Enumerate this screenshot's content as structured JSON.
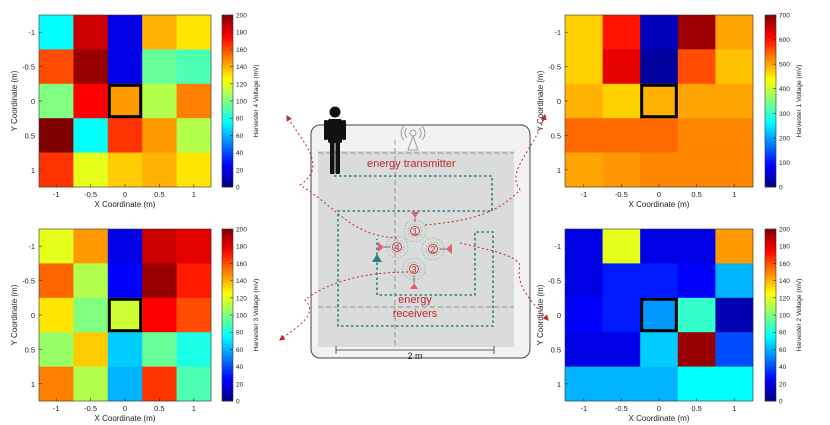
{
  "figure": {
    "center": {
      "energy_transmitter_label": "energy transmitter",
      "energy_receivers_label_line1": "energy",
      "energy_receivers_label_line2": "receivers",
      "scale_bar_label": "2 m",
      "receiver_numbers": [
        "1",
        "2",
        "3",
        "4"
      ],
      "colors": {
        "trajectory": "#2a8080",
        "labels": "#c0282a",
        "receiver": "#e06070"
      }
    }
  },
  "chart_data": [
    {
      "type": "heatmap",
      "position": "top-left",
      "colorbar_label": "Harvester 4 Voltage (mV)",
      "xlabel": "X Coordinate (m)",
      "ylabel": "Y Coordinate (m)",
      "x_ticks": [
        "-1",
        "-0.5",
        "0",
        "0.5",
        "1"
      ],
      "y_ticks": [
        "-1",
        "-0.5",
        "0",
        "0.5",
        "1"
      ],
      "colorbar_ticks": [
        "0",
        "20",
        "40",
        "60",
        "80",
        "100",
        "120",
        "140",
        "160",
        "180",
        "200"
      ],
      "clim": [
        0,
        200
      ],
      "values": [
        [
          75,
          185,
          20,
          140,
          130
        ],
        [
          160,
          195,
          20,
          95,
          90
        ],
        [
          100,
          175,
          145,
          110,
          150
        ],
        [
          200,
          75,
          165,
          145,
          110
        ],
        [
          165,
          120,
          135,
          140,
          130
        ]
      ],
      "highlight_cell": [
        2,
        2
      ]
    },
    {
      "type": "heatmap",
      "position": "top-right",
      "colorbar_label": "Harvester 1 Voltage (mV)",
      "xlabel": "X Coordinate (m)",
      "ylabel": "Y Coordinate (m)",
      "x_ticks": [
        "-1",
        "-0.5",
        "0",
        "0.5",
        "1"
      ],
      "y_ticks": [
        "-1",
        "-0.5",
        "0",
        "0.5",
        "1"
      ],
      "colorbar_ticks": [
        "0",
        "100",
        "200",
        "300",
        "400",
        "500",
        "600",
        "700"
      ],
      "clim": [
        0,
        700
      ],
      "values": [
        [
          470,
          600,
          40,
          680,
          500
        ],
        [
          470,
          630,
          20,
          560,
          480
        ],
        [
          490,
          470,
          490,
          500,
          500
        ],
        [
          540,
          540,
          540,
          520,
          520
        ],
        [
          500,
          510,
          520,
          520,
          520
        ]
      ],
      "highlight_cell": [
        2,
        2
      ]
    },
    {
      "type": "heatmap",
      "position": "bottom-left",
      "colorbar_label": "Harvester 3 Voltage (mV)",
      "xlabel": "X Coordinate (m)",
      "ylabel": "Y Coordinate (m)",
      "x_ticks": [
        "-1",
        "-0.5",
        "0",
        "0.5",
        "1"
      ],
      "y_ticks": [
        "-1",
        "-0.5",
        "0",
        "0.5",
        "1"
      ],
      "colorbar_ticks": [
        "0",
        "20",
        "40",
        "60",
        "80",
        "100",
        "120",
        "140",
        "160",
        "180",
        "200"
      ],
      "clim": [
        0,
        200
      ],
      "values": [
        [
          120,
          145,
          20,
          185,
          180
        ],
        [
          155,
          110,
          25,
          195,
          170
        ],
        [
          130,
          100,
          115,
          175,
          160
        ],
        [
          105,
          135,
          65,
          95,
          80
        ],
        [
          150,
          110,
          60,
          165,
          90
        ]
      ],
      "highlight_cell": [
        2,
        2
      ]
    },
    {
      "type": "heatmap",
      "position": "bottom-right",
      "colorbar_label": "Harvester 2 Voltage (mV)",
      "xlabel": "X Coordinate (m)",
      "ylabel": "Y Coordinate (m)",
      "x_ticks": [
        "-1",
        "-0.5",
        "0",
        "0.5",
        "1"
      ],
      "y_ticks": [
        "-1",
        "-0.5",
        "0",
        "0.5",
        "1"
      ],
      "colorbar_ticks": [
        "0",
        "20",
        "40",
        "60",
        "80",
        "100",
        "120",
        "140",
        "160",
        "180",
        "200"
      ],
      "clim": [
        0,
        200
      ],
      "values": [
        [
          20,
          120,
          20,
          20,
          145
        ],
        [
          20,
          30,
          30,
          25,
          60
        ],
        [
          25,
          30,
          55,
          85,
          10
        ],
        [
          20,
          20,
          65,
          195,
          40
        ],
        [
          60,
          60,
          60,
          75,
          75
        ]
      ],
      "highlight_cell": [
        2,
        2
      ]
    }
  ]
}
